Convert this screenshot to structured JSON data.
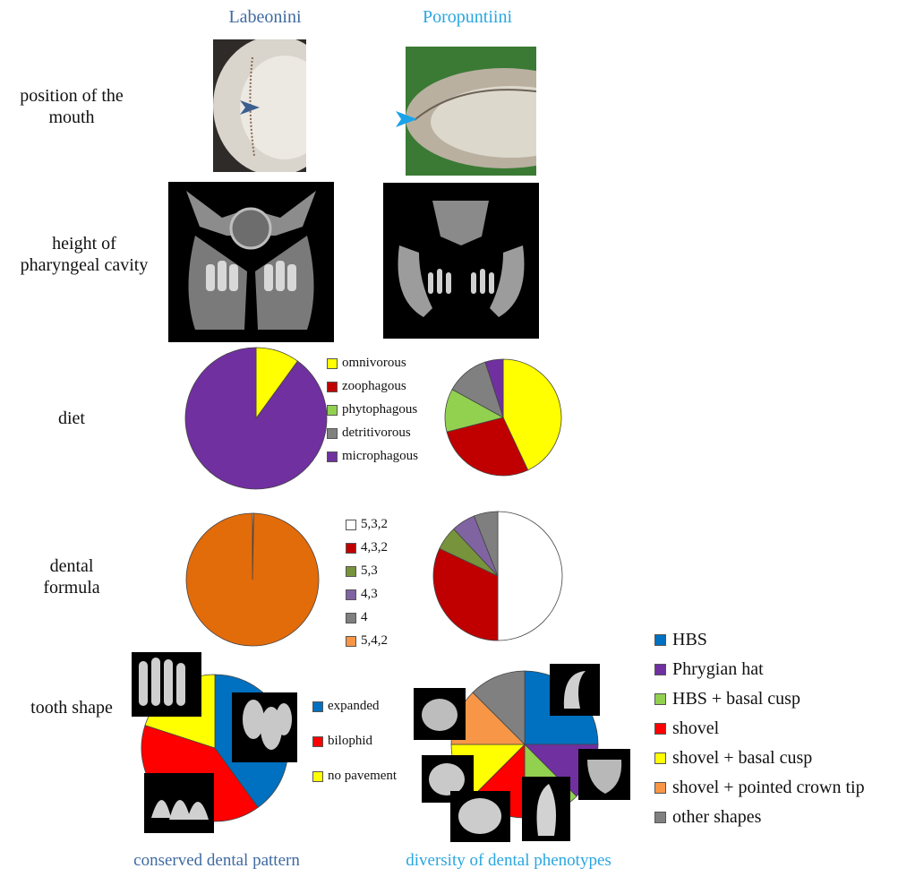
{
  "columns": {
    "left": {
      "title": "Labeonini",
      "color": "#3f6aa1"
    },
    "right": {
      "title": "Poropuntiini",
      "color": "#29a6e0"
    }
  },
  "rows": {
    "mouth": {
      "label": "position of the\nmouth"
    },
    "pharynx": {
      "label": "height of\npharyngeal cavity"
    },
    "diet": {
      "label": "diet"
    },
    "dental_formula": {
      "label": "dental\nformula"
    },
    "tooth_shape": {
      "label": "tooth shape"
    }
  },
  "footer": {
    "left": "conserved dental pattern",
    "right": "diversity of dental phenotypes"
  },
  "colors": {
    "left_title": "#3f6aa1",
    "right_title": "#29a6e0",
    "arrow_left": "#3a5f8f",
    "arrow_right": "#1aa3e8"
  },
  "chart_data": [
    {
      "type": "pie",
      "id": "diet-labeonini",
      "slices": [
        {
          "label": "omnivorous",
          "value": 10,
          "color": "#ffff00"
        },
        {
          "label": "microphagous",
          "value": 90,
          "color": "#7030a0"
        }
      ]
    },
    {
      "type": "pie",
      "id": "diet-poropuntiini",
      "slices": [
        {
          "label": "omnivorous",
          "value": 43,
          "color": "#ffff00"
        },
        {
          "label": "zoophagous",
          "value": 28,
          "color": "#c00000"
        },
        {
          "label": "phytophagous",
          "value": 12,
          "color": "#92d050"
        },
        {
          "label": "detritivorous",
          "value": 12,
          "color": "#808080"
        },
        {
          "label": "microphagous",
          "value": 5,
          "color": "#7030a0"
        }
      ],
      "legend": [
        {
          "label": "omnivorous",
          "color": "#ffff00"
        },
        {
          "label": "zoophagous",
          "color": "#c00000"
        },
        {
          "label": "phytophagous",
          "color": "#92d050"
        },
        {
          "label": "detritivorous",
          "color": "#808080"
        },
        {
          "label": "microphagous",
          "color": "#7030a0"
        }
      ]
    },
    {
      "type": "pie",
      "id": "dental-formula-labeonini",
      "slices": [
        {
          "label": "5,3,2",
          "value": 0.3,
          "color": "#ffffff"
        },
        {
          "label": "5,4,2",
          "value": 99.7,
          "color": "#e26b0a"
        }
      ]
    },
    {
      "type": "pie",
      "id": "dental-formula-poropuntiini",
      "slices": [
        {
          "label": "5,3,2",
          "value": 50,
          "color": "#ffffff"
        },
        {
          "label": "4,3,2",
          "value": 32,
          "color": "#c00000"
        },
        {
          "label": "5,3",
          "value": 6,
          "color": "#77933c"
        },
        {
          "label": "4,3",
          "value": 6,
          "color": "#8064a2"
        },
        {
          "label": "4",
          "value": 6,
          "color": "#7f7f7f"
        }
      ],
      "legend": [
        {
          "label": "5,3,2",
          "color": "#ffffff"
        },
        {
          "label": "4,3,2",
          "color": "#c00000"
        },
        {
          "label": "5,3",
          "color": "#77933c"
        },
        {
          "label": "4,3",
          "color": "#8064a2"
        },
        {
          "label": "4",
          "color": "#7f7f7f"
        },
        {
          "label": "5,4,2",
          "color": "#f79646"
        }
      ]
    },
    {
      "type": "pie",
      "id": "tooth-shape-labeonini",
      "slices": [
        {
          "label": "expanded",
          "value": 40,
          "color": "#0070c0"
        },
        {
          "label": "bilophid",
          "value": 40,
          "color": "#ff0000"
        },
        {
          "label": "no pavement",
          "value": 20,
          "color": "#ffff00"
        }
      ],
      "legend": [
        {
          "label": "expanded",
          "color": "#0070c0"
        },
        {
          "label": "bilophid",
          "color": "#ff0000"
        },
        {
          "label": "no pavement",
          "color": "#ffff00"
        }
      ]
    },
    {
      "type": "pie",
      "id": "tooth-shape-poropuntiini",
      "slices": [
        {
          "label": "HBS",
          "value": 25,
          "color": "#0070c0"
        },
        {
          "label": "Phrygian hat",
          "value": 12.5,
          "color": "#7030a0"
        },
        {
          "label": "HBS + basal cusp",
          "value": 12.5,
          "color": "#92d050"
        },
        {
          "label": "shovel",
          "value": 12.5,
          "color": "#ff0000"
        },
        {
          "label": "shovel + basal cusp",
          "value": 12.5,
          "color": "#ffff00"
        },
        {
          "label": "shovel + pointed crown tip",
          "value": 12.5,
          "color": "#f79646"
        },
        {
          "label": "other shapes",
          "value": 12.5,
          "color": "#808080"
        }
      ],
      "legend": [
        {
          "label": "HBS",
          "color": "#0070c0"
        },
        {
          "label": "Phrygian hat",
          "color": "#7030a0"
        },
        {
          "label": "HBS + basal cusp",
          "color": "#92d050"
        },
        {
          "label": "shovel",
          "color": "#ff0000"
        },
        {
          "label": "shovel + basal cusp",
          "color": "#ffff00"
        },
        {
          "label": "shovel + pointed crown tip",
          "color": "#f79646"
        },
        {
          "label": "other shapes",
          "color": "#808080"
        }
      ]
    }
  ]
}
